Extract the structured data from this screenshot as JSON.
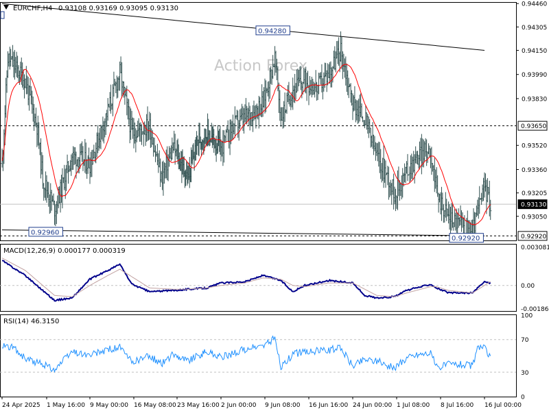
{
  "header": {
    "symbol": "EURCHF,H4",
    "ohlc": "0.93108 0.93169 0.93095 0.93130",
    "menu_icon": "triangle-down-icon"
  },
  "watermark": "Action Forex",
  "colors": {
    "candles": "#2f4f4f",
    "ma": "#ff0000",
    "trendline": "#000000",
    "macd": "#00008b",
    "signal": "#c0a0a0",
    "rsi": "#1e90ff",
    "grid": "#c0c0c0"
  },
  "chart_data": [
    {
      "type": "bar",
      "subtype": "ohlc",
      "title": "EURCHF,H4",
      "ylim": [
        0.9289,
        0.9447
      ],
      "y_ticks": [
        "0.94460",
        "0.94305",
        "0.94150",
        "0.93990",
        "0.93830",
        "0.93520",
        "0.93360",
        "0.93205",
        "0.93050"
      ],
      "x_ticks": [
        "24 Apr 2025",
        "1 May 16:00",
        "9 May 00:00",
        "16 May 08:00",
        "23 May 16:00",
        "2 Jun 00:00",
        "9 Jun 08:00",
        "16 Jun 16:00",
        "24 Jun 00:00",
        "1 Jul 08:00",
        "8 Jul 16:00",
        "16 Jul 00:00"
      ],
      "price_labels": {
        "current": "0.93130",
        "level_resistance": "0.93650",
        "level_support": "0.92920",
        "high_marker": "0.94280",
        "low_marker_1": "0.92960",
        "low_marker_2": "0.92920"
      },
      "levels": [
        0.9365,
        0.9292,
        0.9313
      ],
      "trendlines": [
        {
          "from": [
            "24 Apr 2025",
            0.9446
          ],
          "to": [
            "16 Jul 00:00",
            0.9415
          ]
        },
        {
          "from": [
            "24 Apr 2025",
            0.9296
          ],
          "to": [
            "16 Jul 00:00",
            0.9292
          ]
        }
      ],
      "path_anchors": [
        [
          "24 Apr 2025",
          0.934
        ],
        [
          "25 Apr",
          0.941
        ],
        [
          "28 Apr",
          0.9395
        ],
        [
          "30 Apr",
          0.9365
        ],
        [
          "1 May",
          0.933
        ],
        [
          "3 May",
          0.931
        ],
        [
          "6 May",
          0.9345
        ],
        [
          "9 May",
          0.934
        ],
        [
          "12 May",
          0.9375
        ],
        [
          "14 May",
          0.94
        ],
        [
          "16 May",
          0.936
        ],
        [
          "19 May",
          0.9365
        ],
        [
          "21 May",
          0.933
        ],
        [
          "23 May",
          0.935
        ],
        [
          "26 May",
          0.933
        ],
        [
          "28 May",
          0.9355
        ],
        [
          "30 May",
          0.936
        ],
        [
          "2 Jun",
          0.935
        ],
        [
          "4 Jun",
          0.9365
        ],
        [
          "6 Jun",
          0.937
        ],
        [
          "9 Jun",
          0.938
        ],
        [
          "11 Jun",
          0.941
        ],
        [
          "12 Jun",
          0.937
        ],
        [
          "14 Jun",
          0.939
        ],
        [
          "16 Jun",
          0.9395
        ],
        [
          "18 Jun",
          0.939
        ],
        [
          "20 Jun",
          0.94
        ],
        [
          "22 Jun",
          0.9415
        ],
        [
          "24 Jun",
          0.938
        ],
        [
          "26 Jun",
          0.937
        ],
        [
          "28 Jun",
          0.9345
        ],
        [
          "30 Jun",
          0.933
        ],
        [
          "1 Jul",
          0.932
        ],
        [
          "3 Jul",
          0.9335
        ],
        [
          "5 Jul",
          0.9345
        ],
        [
          "7 Jul",
          0.935
        ],
        [
          "8 Jul",
          0.932
        ],
        [
          "10 Jul",
          0.9305
        ],
        [
          "12 Jul",
          0.93
        ],
        [
          "14 Jul",
          0.9295
        ],
        [
          "15 Jul",
          0.931
        ],
        [
          "16 Jul",
          0.9325
        ],
        [
          "17 Jul",
          0.9313
        ]
      ]
    },
    {
      "type": "line",
      "title": "MACD(12,26,9) 0.000177 0.000319",
      "ylim": [
        -0.00205,
        0.00328
      ],
      "y_ticks": [
        "0.003081",
        "0.00",
        "-0.001868"
      ],
      "series": [
        {
          "name": "MACD",
          "anchors": [
            [
              "24 Apr 2025",
              0.002
            ],
            [
              "28 Apr",
              0.0008
            ],
            [
              "1 May",
              -0.0004
            ],
            [
              "3 May",
              -0.0012
            ],
            [
              "6 May",
              -0.001
            ],
            [
              "9 May",
              0.0005
            ],
            [
              "12 May",
              0.0012
            ],
            [
              "14 May",
              0.0017
            ],
            [
              "16 May",
              0.0001
            ],
            [
              "19 May",
              -0.0005
            ],
            [
              "23 May",
              -0.0004
            ],
            [
              "26 May",
              -0.0003
            ],
            [
              "30 May",
              -0.0002
            ],
            [
              "2 Jun",
              0.0002
            ],
            [
              "6 Jun",
              0.0003
            ],
            [
              "9 Jun",
              0.0008
            ],
            [
              "12 Jun",
              0.0004
            ],
            [
              "14 Jun",
              -0.0005
            ],
            [
              "16 Jun",
              0.0
            ],
            [
              "20 Jun",
              0.0004
            ],
            [
              "24 Jun",
              0.0002
            ],
            [
              "26 Jun",
              -0.0008
            ],
            [
              "28 Jun",
              -0.001
            ],
            [
              "1 Jul",
              -0.0009
            ],
            [
              "3 Jul",
              -0.0004
            ],
            [
              "7 Jul",
              0.0001
            ],
            [
              "8 Jul",
              -0.0002
            ],
            [
              "10 Jul",
              -0.0006
            ],
            [
              "14 Jul",
              -0.0006
            ],
            [
              "16 Jul",
              0.0003
            ],
            [
              "17 Jul",
              0.00018
            ]
          ]
        },
        {
          "name": "Signal",
          "anchors": [
            [
              "24 Apr 2025",
              0.0022
            ],
            [
              "28 Apr",
              0.0012
            ],
            [
              "1 May",
              0.0
            ],
            [
              "3 May",
              -0.0008
            ],
            [
              "6 May",
              -0.0009
            ],
            [
              "9 May",
              0.0
            ],
            [
              "12 May",
              0.0008
            ],
            [
              "14 May",
              0.0013
            ],
            [
              "16 May",
              0.0007
            ],
            [
              "19 May",
              -0.0002
            ],
            [
              "23 May",
              -0.0003
            ],
            [
              "26 May",
              -0.0003
            ],
            [
              "30 May",
              -0.0002
            ],
            [
              "2 Jun",
              0.0
            ],
            [
              "6 Jun",
              0.0002
            ],
            [
              "9 Jun",
              0.0006
            ],
            [
              "12 Jun",
              0.0005
            ],
            [
              "14 Jun",
              0.0
            ],
            [
              "16 Jun",
              -0.0001
            ],
            [
              "20 Jun",
              0.0002
            ],
            [
              "24 Jun",
              0.0002
            ],
            [
              "26 Jun",
              -0.0003
            ],
            [
              "28 Jun",
              -0.0008
            ],
            [
              "1 Jul",
              -0.0009
            ],
            [
              "3 Jul",
              -0.0006
            ],
            [
              "7 Jul",
              -0.0001
            ],
            [
              "8 Jul",
              -0.0001
            ],
            [
              "10 Jul",
              -0.0004
            ],
            [
              "14 Jul",
              -0.0006
            ],
            [
              "16 Jul",
              0.0
            ],
            [
              "17 Jul",
              0.00032
            ]
          ]
        }
      ]
    },
    {
      "type": "line",
      "title": "RSI(14) 46.3150",
      "ylim": [
        0,
        100
      ],
      "y_ticks": [
        "100",
        "70",
        "30",
        "0"
      ],
      "reference_levels": [
        70,
        30
      ],
      "series": [
        {
          "name": "RSI(14)",
          "anchors": [
            [
              "24 Apr 2025",
              64
            ],
            [
              "26 Apr",
              60
            ],
            [
              "28 Apr",
              46
            ],
            [
              "1 May",
              40
            ],
            [
              "3 May",
              33
            ],
            [
              "6 May",
              55
            ],
            [
              "9 May",
              50
            ],
            [
              "12 May",
              58
            ],
            [
              "14 May",
              60
            ],
            [
              "16 May",
              42
            ],
            [
              "19 May",
              50
            ],
            [
              "21 May",
              40
            ],
            [
              "23 May",
              52
            ],
            [
              "26 May",
              44
            ],
            [
              "30 May",
              55
            ],
            [
              "2 Jun",
              48
            ],
            [
              "6 Jun",
              58
            ],
            [
              "9 Jun",
              62
            ],
            [
              "11 Jun",
              72
            ],
            [
              "12 Jun",
              36
            ],
            [
              "14 Jun",
              52
            ],
            [
              "16 Jun",
              55
            ],
            [
              "20 Jun",
              57
            ],
            [
              "22 Jun",
              60
            ],
            [
              "24 Jun",
              38
            ],
            [
              "26 Jun",
              46
            ],
            [
              "28 Jun",
              44
            ],
            [
              "1 Jul",
              35
            ],
            [
              "3 Jul",
              48
            ],
            [
              "5 Jul",
              52
            ],
            [
              "7 Jul",
              54
            ],
            [
              "8 Jul",
              36
            ],
            [
              "10 Jul",
              40
            ],
            [
              "12 Jul",
              40
            ],
            [
              "14 Jul",
              38
            ],
            [
              "15 Jul",
              62
            ],
            [
              "16 Jul",
              60
            ],
            [
              "17 Jul",
              46.3
            ]
          ]
        }
      ]
    }
  ]
}
